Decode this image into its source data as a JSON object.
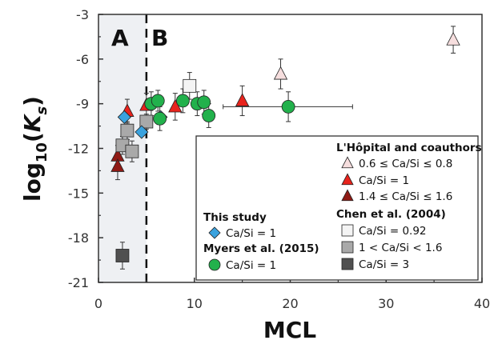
{
  "chart_data": {
    "type": "scatter",
    "xlabel": "MCL",
    "ylabel_base": "log",
    "ylabel_sub": "10",
    "ylabel_open": "(",
    "ylabel_var": "K",
    "ylabel_var_sub": "s",
    "ylabel_close": ")",
    "xlim": [
      0,
      40
    ],
    "ylim": [
      -21,
      -3
    ],
    "xticks": [
      0,
      10,
      20,
      30,
      40
    ],
    "yticks": [
      -3,
      -6,
      -9,
      -12,
      -15,
      -18,
      -21
    ],
    "divider_x": 5,
    "region_labels": [
      "A",
      "B"
    ],
    "shaded_region": [
      0,
      5
    ],
    "legend_groups": [
      {
        "heading": "L'Hôpital and coauthors",
        "entries": [
          {
            "label": "0.6 ≤ Ca/Si ≤ 0.8",
            "marker": "triangle",
            "color": "#f6dede"
          },
          {
            "label": "Ca/Si = 1",
            "marker": "triangle",
            "color": "#e8231c"
          },
          {
            "label": "1.4 ≤ Ca/Si ≤ 1.6",
            "marker": "triangle",
            "color": "#8f1a15"
          }
        ]
      },
      {
        "heading": "Chen et al. (2004)",
        "entries": [
          {
            "label": "Ca/Si = 0.92",
            "marker": "square",
            "color": "#f4f4f4"
          },
          {
            "label": "1 < Ca/Si < 1.6",
            "marker": "square",
            "color": "#a9a9a9"
          },
          {
            "label": "Ca/Si = 3",
            "marker": "square",
            "color": "#505050"
          }
        ]
      },
      {
        "heading": "This study",
        "entries": [
          {
            "label": "Ca/Si = 1",
            "marker": "diamond",
            "color": "#3aa2de"
          }
        ]
      },
      {
        "heading": "Myers et al. (2015)",
        "entries": [
          {
            "label": "Ca/Si = 1",
            "marker": "circle",
            "color": "#22b14c"
          }
        ]
      }
    ],
    "series": [
      {
        "group": 0,
        "entry": 0,
        "marker": "triangle",
        "color": "#f6dede",
        "points": [
          {
            "x": 19,
            "y": -7.0,
            "err": 1.0
          },
          {
            "x": 37,
            "y": -4.7,
            "err": 0.9
          }
        ]
      },
      {
        "group": 0,
        "entry": 1,
        "marker": "triangle",
        "color": "#e8231c",
        "points": [
          {
            "x": 3,
            "y": -9.5,
            "err": 0.8
          },
          {
            "x": 5,
            "y": -9.1,
            "err": 0.8
          },
          {
            "x": 8,
            "y": -9.2,
            "err": 0.9
          },
          {
            "x": 15,
            "y": -8.8,
            "err": 1.0
          }
        ]
      },
      {
        "group": 0,
        "entry": 2,
        "marker": "triangle",
        "color": "#8f1a15",
        "points": [
          {
            "x": 2,
            "y": -12.5,
            "err": 0.7
          },
          {
            "x": 2,
            "y": -13.2,
            "err": 0.9
          }
        ]
      },
      {
        "group": 1,
        "entry": 0,
        "marker": "square",
        "color": "#f4f4f4",
        "points": [
          {
            "x": 9.5,
            "y": -7.8,
            "err": 0.9
          }
        ]
      },
      {
        "group": 1,
        "entry": 1,
        "marker": "square",
        "color": "#a9a9a9",
        "points": [
          {
            "x": 2.5,
            "y": -11.8,
            "err": 0.6
          },
          {
            "x": 3,
            "y": -10.8,
            "err": 0.6
          },
          {
            "x": 3.5,
            "y": -12.2,
            "err": 0.7
          },
          {
            "x": 5,
            "y": -10.2,
            "err": 0.5
          }
        ]
      },
      {
        "group": 1,
        "entry": 2,
        "marker": "square",
        "color": "#505050",
        "points": [
          {
            "x": 2.5,
            "y": -19.2,
            "err": 0.9
          }
        ]
      },
      {
        "group": 2,
        "entry": 0,
        "marker": "diamond",
        "color": "#3aa2de",
        "points": [
          {
            "x": 2.7,
            "y": -9.9
          },
          {
            "x": 4.5,
            "y": -10.9
          },
          {
            "x": 6.5,
            "y": -9.9
          }
        ]
      },
      {
        "group": 3,
        "entry": 0,
        "marker": "circle",
        "color": "#22b14c",
        "points": [
          {
            "x": 5.5,
            "y": -9.0,
            "err": 0.8
          },
          {
            "x": 6.2,
            "y": -8.8,
            "err": 0.7
          },
          {
            "x": 6.4,
            "y": -10.0,
            "err": 0.8
          },
          {
            "x": 8.8,
            "y": -8.8,
            "err": 0.8
          },
          {
            "x": 10.3,
            "y": -9.0,
            "err": 0.8
          },
          {
            "x": 11,
            "y": -8.9,
            "err": 0.8
          },
          {
            "x": 11.5,
            "y": -9.8,
            "err": 0.8
          },
          {
            "x": 19.8,
            "y": -9.2,
            "err": 1.0,
            "xerr": [
              13,
              26.5
            ]
          }
        ]
      }
    ]
  }
}
